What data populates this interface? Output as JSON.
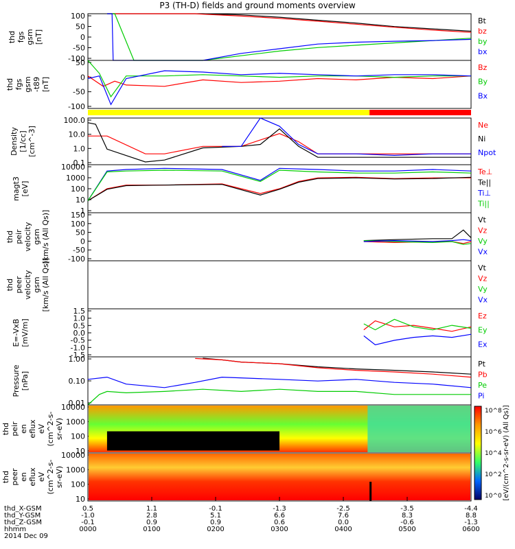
{
  "title": "P3 (TH-D) fields and ground moments overview",
  "date_label": "2014 Dec 09",
  "colors": {
    "black": "#000000",
    "red": "#ff0000",
    "green": "#00cc00",
    "blue": "#0000ff",
    "bar_yellow": "#ffff00",
    "bar_red": "#ff0000"
  },
  "chart_data": [
    {
      "type": "line",
      "panel": "fgs-gsm",
      "ylabel": [
        "thd",
        "fgs",
        "gsm",
        "[nT]"
      ],
      "ylim": [
        -100,
        100
      ],
      "yticks": [
        "100",
        "50",
        "0",
        "-50",
        "-100"
      ],
      "series": [
        {
          "name": "Bt",
          "color": "#000000",
          "x": [
            0.05,
            0.06,
            0.15,
            0.2,
            0.25,
            0.3,
            0.4,
            0.5,
            0.6,
            0.7,
            0.8,
            0.9,
            1.0
          ],
          "y": [
            100,
            100,
            105,
            110,
            107,
            100,
            95,
            85,
            72,
            60,
            45,
            35,
            25
          ]
        },
        {
          "name": "bz",
          "color": "#ff0000",
          "x": [
            0.05,
            0.06,
            0.12,
            0.2,
            0.28,
            0.3,
            0.4,
            0.5,
            0.6,
            0.7,
            0.8,
            0.9,
            1.0
          ],
          "y": [
            100,
            100,
            115,
            110,
            100,
            98,
            90,
            80,
            68,
            55,
            42,
            30,
            20
          ]
        },
        {
          "name": "by",
          "color": "#00cc00",
          "x": [
            0.05,
            0.07,
            0.12,
            0.15,
            0.2,
            0.3,
            0.4,
            0.5,
            0.6,
            0.7,
            0.8,
            0.9,
            1.0
          ],
          "y": [
            100,
            100,
            -100,
            -120,
            -110,
            -105,
            -80,
            -60,
            -45,
            -35,
            -25,
            -15,
            -5
          ]
        },
        {
          "name": "bx",
          "color": "#0000ff",
          "x": [
            0.05,
            0.063,
            0.066,
            0.2,
            0.3,
            0.4,
            0.5,
            0.6,
            0.7,
            0.8,
            0.9,
            1.0
          ],
          "y": [
            100,
            100,
            -100,
            -115,
            -100,
            -70,
            -50,
            -30,
            -22,
            -18,
            -15,
            -10
          ]
        }
      ]
    },
    {
      "type": "line",
      "panel": "fgs-gsm-bg",
      "ylabel": [
        "thd",
        "fgs",
        "gsm",
        "-t89",
        "[nT]"
      ],
      "ylim": [
        -125,
        60
      ],
      "yticks": [
        "50",
        "0",
        "-50",
        "-100"
      ],
      "series": [
        {
          "name": "Bz",
          "color": "#ff0000",
          "x": [
            0.0,
            0.04,
            0.07,
            0.1,
            0.2,
            0.3,
            0.4,
            0.5,
            0.6,
            0.7,
            0.8,
            0.9,
            1.0
          ],
          "y": [
            0,
            -40,
            -20,
            -35,
            -40,
            -15,
            -25,
            -20,
            -10,
            -15,
            -5,
            -10,
            0
          ]
        },
        {
          "name": "By",
          "color": "#00cc00",
          "x": [
            0.0,
            0.03,
            0.06,
            0.1,
            0.2,
            0.3,
            0.4,
            0.5,
            0.6,
            0.7,
            0.8,
            0.9,
            1.0
          ],
          "y": [
            60,
            10,
            -80,
            0,
            0,
            5,
            0,
            -5,
            0,
            0,
            -5,
            0,
            0
          ]
        },
        {
          "name": "Bx",
          "color": "#0000ff",
          "x": [
            0.0,
            0.03,
            0.06,
            0.1,
            0.2,
            0.3,
            0.4,
            0.5,
            0.6,
            0.7,
            0.8,
            0.9,
            1.0
          ],
          "y": [
            -10,
            0,
            -110,
            -10,
            20,
            15,
            5,
            10,
            5,
            0,
            5,
            5,
            0
          ]
        }
      ]
    },
    {
      "type": "line",
      "panel": "density",
      "log": true,
      "ylabel": [
        "Density",
        "[1/cc]",
        "[cm^-3]"
      ],
      "ylim": [
        0.1,
        100
      ],
      "yticks": [
        "100.0",
        "10.0",
        "1.0",
        "0.1"
      ],
      "series": [
        {
          "name": "Ne",
          "color": "#ff0000",
          "x": [
            0,
            0.05,
            0.15,
            0.2,
            0.3,
            0.4,
            0.5,
            0.55,
            0.6,
            0.7,
            0.8,
            0.9,
            1.0
          ],
          "y": [
            7,
            7,
            0.5,
            0.5,
            1.5,
            1.5,
            10,
            3,
            0.5,
            0.5,
            0.5,
            0.5,
            0.5
          ]
        },
        {
          "name": "Ni",
          "color": "#000000",
          "x": [
            0,
            0.02,
            0.05,
            0.15,
            0.2,
            0.3,
            0.4,
            0.45,
            0.5,
            0.55,
            0.6,
            0.7,
            0.8,
            0.9,
            1.0
          ],
          "y": [
            50,
            40,
            1,
            0.15,
            0.2,
            1.2,
            1.5,
            2,
            20,
            1.5,
            0.3,
            0.3,
            0.3,
            0.3,
            0.3
          ]
        },
        {
          "name": "Npot",
          "color": "#0000ff",
          "x": [
            0.35,
            0.4,
            0.45,
            0.5,
            0.55,
            0.6,
            0.7,
            0.8,
            0.9,
            1.0
          ],
          "y": [
            1.5,
            1.5,
            100,
            30,
            2,
            0.5,
            0.5,
            0.4,
            0.5,
            0.5
          ]
        }
      ]
    },
    {
      "type": "line",
      "panel": "temperature",
      "log": true,
      "ylabel": [
        "magt3",
        "[eV]"
      ],
      "ylim": [
        1,
        10000
      ],
      "yticks": [
        "10000",
        "1000",
        "100",
        "10",
        "1"
      ],
      "series": [
        {
          "name": "Te⊥",
          "color": "#ff0000",
          "x": [
            0,
            0.05,
            0.1,
            0.2,
            0.35,
            0.45,
            0.5,
            0.55,
            0.6,
            0.7,
            0.8,
            0.9,
            1.0
          ],
          "y": [
            10,
            100,
            200,
            200,
            250,
            40,
            100,
            400,
            800,
            900,
            700,
            800,
            800
          ]
        },
        {
          "name": "Te||",
          "color": "#000000",
          "x": [
            0,
            0.05,
            0.1,
            0.2,
            0.35,
            0.45,
            0.5,
            0.55,
            0.6,
            0.7,
            0.8,
            0.9,
            1.0
          ],
          "y": [
            10,
            90,
            180,
            200,
            230,
            30,
            90,
            350,
            700,
            800,
            650,
            700,
            900
          ]
        },
        {
          "name": "Ti⊥",
          "color": "#0000ff",
          "x": [
            0,
            0.05,
            0.1,
            0.2,
            0.35,
            0.45,
            0.5,
            0.6,
            0.7,
            0.8,
            0.9,
            1.0
          ],
          "y": [
            10,
            3000,
            4000,
            5000,
            4000,
            500,
            5000,
            4000,
            3000,
            3000,
            4000,
            3000
          ]
        },
        {
          "name": "Ti||",
          "color": "#00cc00",
          "x": [
            0,
            0.05,
            0.1,
            0.2,
            0.35,
            0.45,
            0.5,
            0.6,
            0.7,
            0.8,
            0.9,
            1.0
          ],
          "y": [
            10,
            2500,
            3000,
            3500,
            3000,
            400,
            3500,
            2500,
            2000,
            2000,
            2500,
            2000
          ]
        }
      ]
    },
    {
      "type": "line",
      "panel": "peir-velocity",
      "ylabel": [
        "thd",
        "peir",
        "velocity",
        "gsm",
        "[km/s (All Qs)]"
      ],
      "ylim": [
        -100,
        150
      ],
      "yticks": [
        "150",
        "100",
        "50",
        "0",
        "-50",
        "-100"
      ],
      "series": [
        {
          "name": "Vt",
          "color": "#000000",
          "x": [
            0.72,
            0.8,
            0.9,
            0.95,
            0.98,
            1.0
          ],
          "y": [
            5,
            10,
            15,
            15,
            60,
            20
          ]
        },
        {
          "name": "Vz",
          "color": "#ff0000",
          "x": [
            0.72,
            0.8,
            0.9,
            0.95,
            0.98,
            1.0
          ],
          "y": [
            0,
            -5,
            0,
            0,
            -10,
            0
          ]
        },
        {
          "name": "Vy",
          "color": "#00cc00",
          "x": [
            0.72,
            0.8,
            0.9,
            0.95,
            0.98,
            1.0
          ],
          "y": [
            5,
            0,
            -5,
            0,
            -15,
            -10
          ]
        },
        {
          "name": "Vx",
          "color": "#0000ff",
          "x": [
            0.72,
            0.8,
            0.9,
            0.95,
            0.98,
            1.0
          ],
          "y": [
            0,
            5,
            0,
            5,
            10,
            5
          ]
        }
      ]
    },
    {
      "type": "line",
      "panel": "peer-velocity",
      "ylabel": [
        "thd",
        "peer",
        "velocity",
        "gsm",
        "[km/s (All Qs)]"
      ],
      "ylim": [
        -100,
        150
      ],
      "yticks": [],
      "series": [
        {
          "name": "Vt",
          "color": "#000000",
          "x": [],
          "y": []
        },
        {
          "name": "Vz",
          "color": "#ff0000",
          "x": [],
          "y": []
        },
        {
          "name": "Vy",
          "color": "#00cc00",
          "x": [],
          "y": []
        },
        {
          "name": "Vx",
          "color": "#0000ff",
          "x": [],
          "y": []
        }
      ]
    },
    {
      "type": "line",
      "panel": "e-field",
      "ylabel": [
        "E=-VxB",
        "[mV/m]"
      ],
      "ylim": [
        -1.6,
        1.6
      ],
      "yticks": [
        "1.5",
        "1.0",
        "0.5",
        "0.0",
        "-0.5",
        "-1.0",
        "-1.5"
      ],
      "series": [
        {
          "name": "Ez",
          "color": "#ff0000",
          "x": [
            0.72,
            0.75,
            0.8,
            0.85,
            0.9,
            0.95,
            1.0
          ],
          "y": [
            0.2,
            0.8,
            0.4,
            0.5,
            0.3,
            0.1,
            0.4
          ]
        },
        {
          "name": "Ey",
          "color": "#00cc00",
          "x": [
            0.72,
            0.75,
            0.8,
            0.85,
            0.9,
            0.95,
            1.0
          ],
          "y": [
            0.6,
            0.2,
            0.9,
            0.4,
            0.2,
            0.5,
            0.3
          ]
        },
        {
          "name": "Ex",
          "color": "#0000ff",
          "x": [
            0.72,
            0.75,
            0.8,
            0.85,
            0.9,
            0.95,
            1.0
          ],
          "y": [
            -0.2,
            -0.8,
            -0.5,
            -0.3,
            -0.2,
            -0.3,
            -0.1
          ]
        }
      ]
    },
    {
      "type": "line",
      "panel": "pressure",
      "log": true,
      "ylabel": [
        "Pressure",
        "[nPa]"
      ],
      "ylim": [
        0.005,
        3
      ],
      "yticks": [
        "1.00",
        "0.10",
        "0.01"
      ],
      "series": [
        {
          "name": "Pt",
          "color": "#000000",
          "x": [
            0.3,
            0.35,
            0.4,
            0.5,
            0.6,
            0.7,
            0.8,
            0.9,
            1.0
          ],
          "y": [
            2.5,
            2.0,
            1.5,
            1.2,
            0.8,
            0.6,
            0.5,
            0.4,
            0.3
          ]
        },
        {
          "name": "Pb",
          "color": "#ff0000",
          "x": [
            0.28,
            0.35,
            0.4,
            0.5,
            0.6,
            0.7,
            0.8,
            0.9,
            1.0
          ],
          "y": [
            2.4,
            2.0,
            1.5,
            1.2,
            0.7,
            0.5,
            0.4,
            0.3,
            0.2
          ]
        },
        {
          "name": "Pe",
          "color": "#00cc00",
          "x": [
            0,
            0.03,
            0.05,
            0.1,
            0.2,
            0.3,
            0.4,
            0.5,
            0.6,
            0.7,
            0.8,
            0.9,
            1.0
          ],
          "y": [
            0.005,
            0.02,
            0.03,
            0.025,
            0.03,
            0.04,
            0.03,
            0.04,
            0.03,
            0.03,
            0.02,
            0.02,
            0.02
          ]
        },
        {
          "name": "Pi",
          "color": "#0000ff",
          "x": [
            0,
            0.05,
            0.1,
            0.2,
            0.28,
            0.35,
            0.5,
            0.6,
            0.7,
            0.8,
            0.9,
            1.0
          ],
          "y": [
            0.15,
            0.2,
            0.08,
            0.05,
            0.1,
            0.2,
            0.15,
            0.12,
            0.15,
            0.1,
            0.08,
            0.05
          ]
        }
      ]
    },
    {
      "type": "heatmap",
      "panel": "peir-en-eflux",
      "ylabel": [
        "thd",
        "peir",
        "en",
        "eflux",
        "eV",
        "(cm^2-s-",
        "sr-eV)"
      ],
      "yticks": [
        "10000",
        "1000",
        "100",
        "10"
      ],
      "colorbar_label": "[eV/(cm^2-s-sr-eV) (All Qs)]",
      "colorbar_ticks": [
        "10^8",
        "10^6",
        "10^4",
        "10^2",
        "10^0"
      ]
    },
    {
      "type": "heatmap",
      "panel": "peer-en-eflux",
      "ylabel": [
        "thd",
        "peer",
        "en",
        "eflux",
        "eV",
        "(cm^2-s-",
        "sr-eV)"
      ],
      "yticks": [
        "10000",
        "1000",
        "100",
        "10"
      ],
      "colorbar_label": "[eV/(cm^2-s-sr-eV)]",
      "colorbar_ticks": [
        "10^8",
        "10^6",
        "10^4",
        "10^2",
        "10^0"
      ]
    }
  ],
  "xaxis": {
    "rows": [
      {
        "label": "thd_X-GSM",
        "values": [
          "0.5",
          "1.1",
          "-0.1",
          "-1.3",
          "-2.5",
          "-3.5",
          "-4.4"
        ]
      },
      {
        "label": "thd_Y-GSM",
        "values": [
          "-1.0",
          "2.8",
          "5.1",
          "6.6",
          "7.6",
          "8.3",
          "8.8"
        ]
      },
      {
        "label": "thd_Z-GSM",
        "values": [
          "-0.1",
          "0.9",
          "0.9",
          "0.6",
          "0.0",
          "-0.6",
          "-1.3"
        ]
      },
      {
        "label": "hhmm",
        "values": [
          "0000",
          "0100",
          "0200",
          "0300",
          "0400",
          "0500",
          "0600"
        ]
      }
    ]
  }
}
